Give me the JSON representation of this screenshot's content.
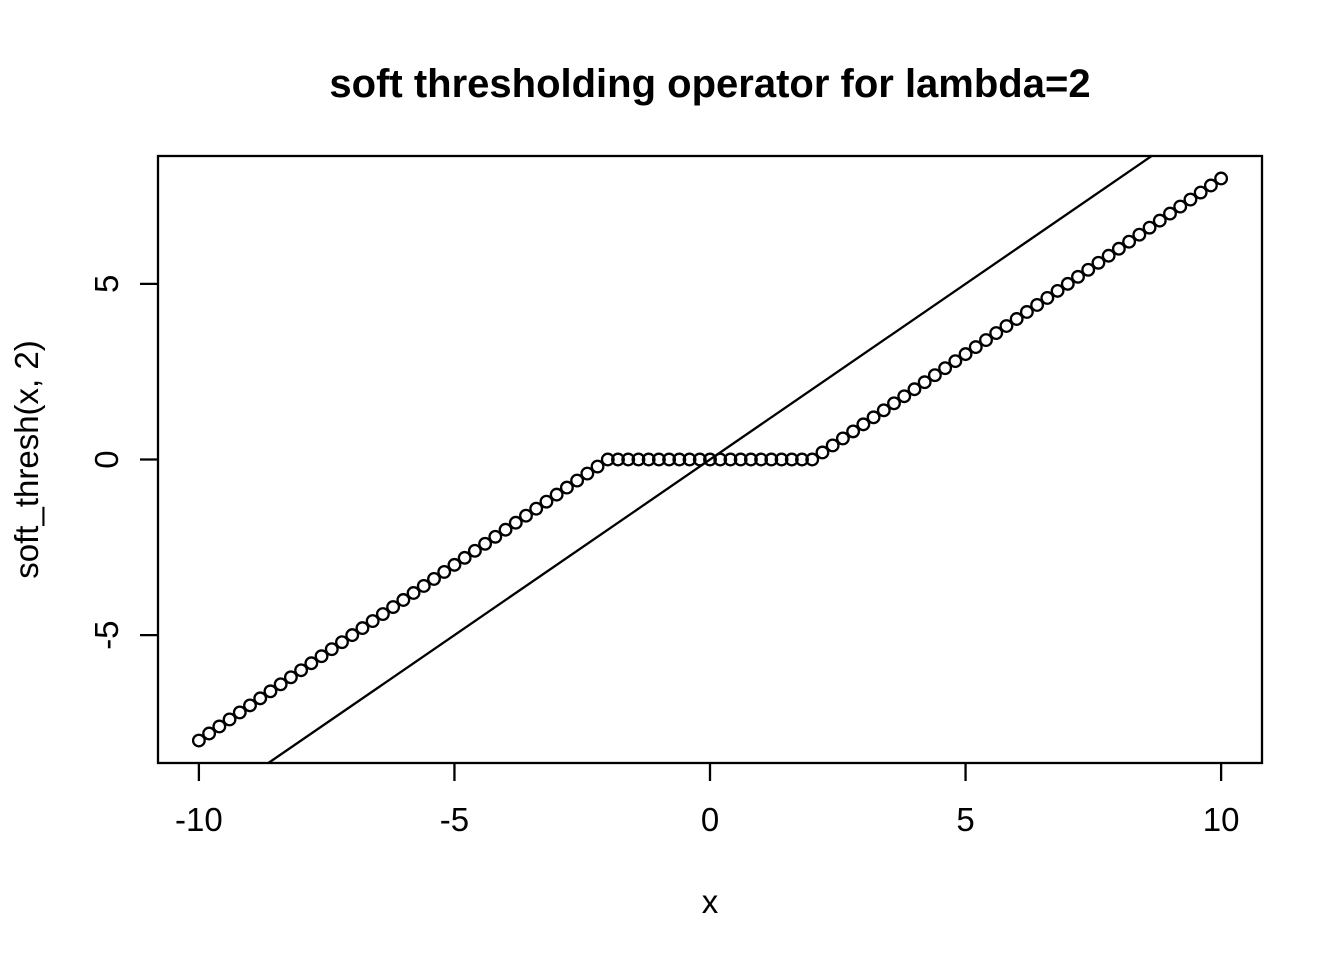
{
  "figure": {
    "background_color": "#ffffff",
    "foreground_color": "#000000"
  },
  "chart_data": {
    "type": "scatter",
    "title": "soft thresholding operator for lambda=2",
    "xlabel": "x",
    "ylabel": "soft_thresh(x, 2)",
    "xlim": [
      -10.8,
      10.8
    ],
    "ylim": [
      -8.64,
      8.64
    ],
    "x_ticks": [
      -10,
      -5,
      0,
      5,
      10
    ],
    "y_ticks": [
      -5,
      0,
      5
    ],
    "grid": false,
    "legend": "none",
    "series": [
      {
        "name": "soft_thresh_points",
        "type": "points",
        "marker": "open-circle",
        "color": "#000000",
        "x": [
          -10,
          -9.8,
          -9.6,
          -9.4,
          -9.2,
          -9,
          -8.8,
          -8.6,
          -8.4,
          -8.2,
          -8,
          -7.8,
          -7.6,
          -7.4,
          -7.2,
          -7,
          -6.8,
          -6.6,
          -6.4,
          -6.2,
          -6,
          -5.8,
          -5.6,
          -5.4,
          -5.2,
          -5,
          -4.8,
          -4.6,
          -4.4,
          -4.2,
          -4,
          -3.8,
          -3.6,
          -3.4,
          -3.2,
          -3,
          -2.8,
          -2.6,
          -2.4,
          -2.2,
          -2,
          -1.8,
          -1.6,
          -1.4,
          -1.2,
          -1,
          -0.8,
          -0.6,
          -0.4,
          -0.2,
          0,
          0.2,
          0.4,
          0.6,
          0.8,
          1,
          1.2,
          1.4,
          1.6,
          1.8,
          2,
          2.2,
          2.4,
          2.6,
          2.8,
          3,
          3.2,
          3.4,
          3.6,
          3.8,
          4,
          4.2,
          4.4,
          4.6,
          4.8,
          5,
          5.2,
          5.4,
          5.6,
          5.8,
          6,
          6.2,
          6.4,
          6.6,
          6.8,
          7,
          7.2,
          7.4,
          7.6,
          7.8,
          8,
          8.2,
          8.4,
          8.6,
          8.8,
          9,
          9.2,
          9.4,
          9.6,
          9.8,
          10
        ],
        "y": [
          -8,
          -7.8,
          -7.6,
          -7.4,
          -7.2,
          -7,
          -6.8,
          -6.6,
          -6.4,
          -6.2,
          -6,
          -5.8,
          -5.6,
          -5.4,
          -5.2,
          -5,
          -4.8,
          -4.6,
          -4.4,
          -4.2,
          -4,
          -3.8,
          -3.6,
          -3.4,
          -3.2,
          -3,
          -2.8,
          -2.6,
          -2.4,
          -2.2,
          -2,
          -1.8,
          -1.6,
          -1.4,
          -1.2,
          -1,
          -0.8,
          -0.6,
          -0.4,
          -0.2,
          0,
          0,
          0,
          0,
          0,
          0,
          0,
          0,
          0,
          0,
          0,
          0,
          0,
          0,
          0,
          0,
          0,
          0,
          0,
          0,
          0,
          0.2,
          0.4,
          0.6,
          0.8,
          1,
          1.2,
          1.4,
          1.6,
          1.8,
          2,
          2.2,
          2.4,
          2.6,
          2.8,
          3,
          3.2,
          3.4,
          3.6,
          3.8,
          4,
          4.2,
          4.4,
          4.6,
          4.8,
          5,
          5.2,
          5.4,
          5.6,
          5.8,
          6,
          6.2,
          6.4,
          6.6,
          6.8,
          7,
          7.2,
          7.4,
          7.6,
          7.8,
          8
        ],
        "description": "sign(x) * max(|x| - 2, 0)"
      },
      {
        "name": "identity_line",
        "type": "line",
        "color": "#000000",
        "x": [
          -8.64,
          8.64
        ],
        "y": [
          -8.64,
          8.64
        ],
        "description": "y = x clipped to plot region"
      }
    ]
  }
}
